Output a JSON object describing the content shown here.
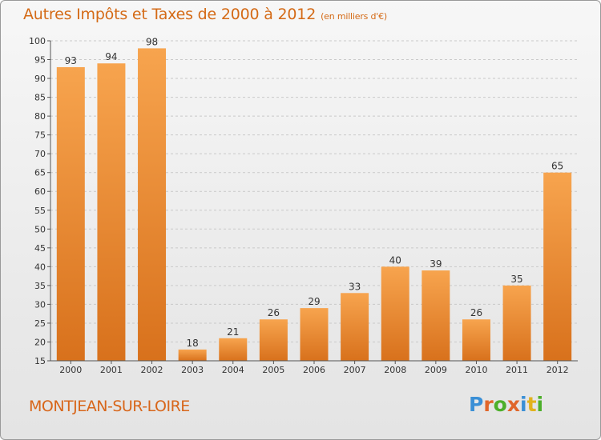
{
  "header": {
    "title": "Autres Impôts et Taxes de 2000 à 2012",
    "unit": "(en milliers d'€)"
  },
  "footer": {
    "town": "MONTJEAN-SUR-LOIRE",
    "brand_letters": [
      "P",
      "r",
      "o",
      "x",
      "i",
      "t",
      "i"
    ],
    "brand_colors": [
      "#3a8fd6",
      "#e0662a",
      "#4caf2a",
      "#e0662a",
      "#3a8fd6",
      "#e2b21c",
      "#4caf2a"
    ]
  },
  "colors": {
    "bar_light": "#f7a44e",
    "bar_dark": "#d8711c",
    "title": "#d46a16"
  },
  "chart_data": {
    "type": "bar",
    "categories": [
      "2000",
      "2001",
      "2002",
      "2003",
      "2004",
      "2005",
      "2006",
      "2007",
      "2008",
      "2009",
      "2010",
      "2011",
      "2012"
    ],
    "values": [
      93,
      94,
      98,
      18,
      21,
      26,
      29,
      33,
      40,
      39,
      26,
      35,
      65
    ],
    "title": "Autres Impôts et Taxes de 2000 à 2012",
    "ylim": [
      15,
      100
    ],
    "yticks": [
      15,
      20,
      25,
      30,
      35,
      40,
      45,
      50,
      55,
      60,
      65,
      70,
      75,
      80,
      85,
      90,
      95,
      100
    ],
    "grid": true
  }
}
